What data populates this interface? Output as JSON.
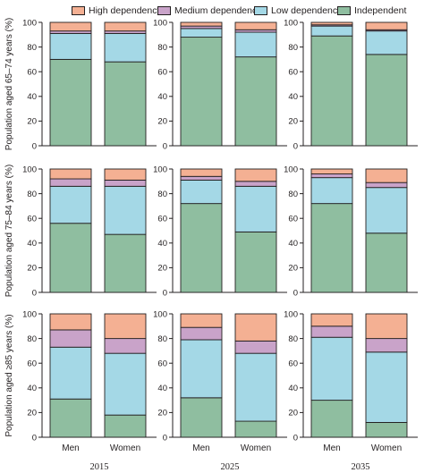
{
  "legend": [
    {
      "label": "High dependency",
      "color": "#f4b093"
    },
    {
      "label": "Medium dependency",
      "color": "#c9a3c9"
    },
    {
      "label": "Low dependency",
      "color": "#a4d8e6"
    },
    {
      "label": "Independent",
      "color": "#8fbea0"
    }
  ],
  "chart_data": {
    "type": "bar",
    "stacked": true,
    "categories": [
      "Men",
      "Women"
    ],
    "column_labels": [
      "2015",
      "2025",
      "2035"
    ],
    "row_labels": [
      "Population aged 65–74 years (%)",
      "Population aged 75–84 years (%)",
      "Population aged ≥85 years (%)"
    ],
    "ylim": [
      0,
      100
    ],
    "yticks": [
      "0",
      "20",
      "40",
      "60",
      "80",
      "100"
    ],
    "series_order": [
      "Independent",
      "Low dependency",
      "Medium dependency",
      "High dependency"
    ],
    "panels": [
      [
        {
          "Men": [
            70,
            21,
            2,
            7
          ],
          "Women": [
            68,
            23,
            2,
            7
          ]
        },
        {
          "Men": [
            88,
            7,
            2,
            3
          ],
          "Women": [
            72,
            20,
            2,
            6
          ]
        },
        {
          "Men": [
            89,
            8,
            1,
            2
          ],
          "Women": [
            74,
            19,
            1,
            6
          ]
        }
      ],
      [
        {
          "Men": [
            56,
            30,
            6,
            8
          ],
          "Women": [
            47,
            39,
            5,
            9
          ]
        },
        {
          "Men": [
            72,
            19,
            3,
            6
          ],
          "Women": [
            49,
            37,
            4,
            10
          ]
        },
        {
          "Men": [
            72,
            21,
            3,
            4
          ],
          "Women": [
            48,
            37,
            4,
            11
          ]
        }
      ],
      [
        {
          "Men": [
            31,
            42,
            14,
            13
          ],
          "Women": [
            18,
            50,
            12,
            20
          ]
        },
        {
          "Men": [
            32,
            47,
            10,
            11
          ],
          "Women": [
            13,
            55,
            10,
            22
          ]
        },
        {
          "Men": [
            30,
            51,
            9,
            10
          ],
          "Women": [
            12,
            57,
            11,
            20
          ]
        }
      ]
    ]
  }
}
